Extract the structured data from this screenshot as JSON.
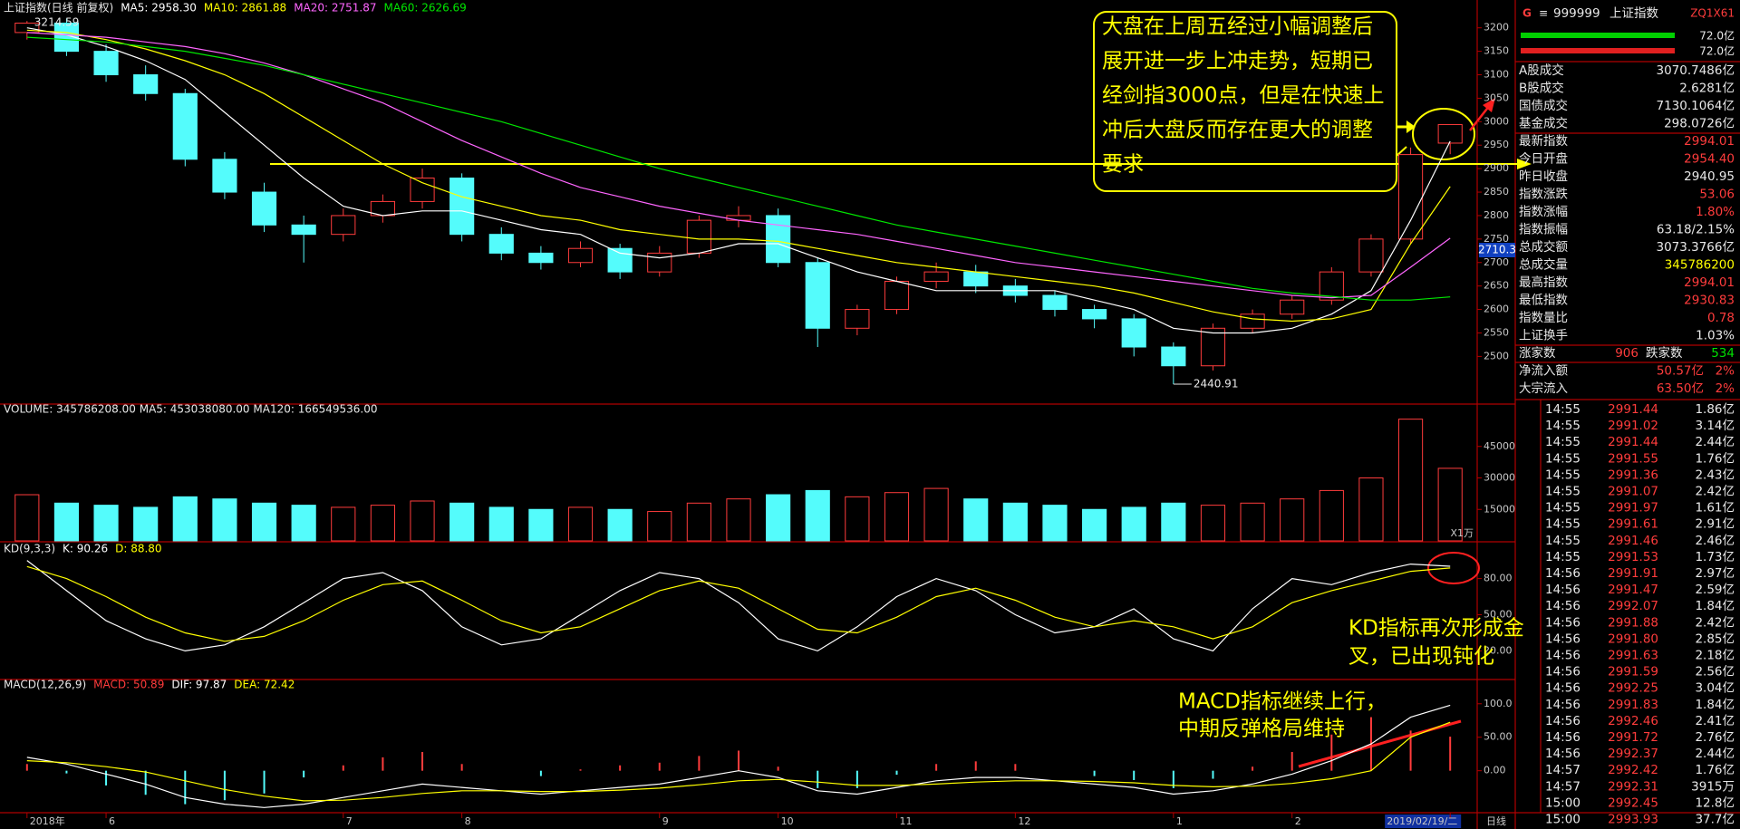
{
  "chart_data": [
    {
      "type": "candlestick",
      "title": "上证指数(日线 前复权)",
      "categories": [
        "2018年",
        null,
        "6",
        null,
        null,
        null,
        null,
        null,
        "7",
        null,
        null,
        "8",
        null,
        null,
        null,
        null,
        "9",
        null,
        null,
        "10",
        null,
        null,
        "11",
        null,
        null,
        "12",
        null,
        null,
        null,
        "1",
        null,
        null,
        "2",
        null,
        null,
        null,
        "2019/02/19/二"
      ],
      "open": [
        3190,
        3210,
        3150,
        3100,
        3060,
        2920,
        2850,
        2780,
        2760,
        2800,
        2830,
        2880,
        2760,
        2720,
        2700,
        2730,
        2680,
        2720,
        2790,
        2800,
        2700,
        2560,
        2600,
        2660,
        2680,
        2650,
        2630,
        2600,
        2580,
        2520,
        2480,
        2560,
        2590,
        2620,
        2680,
        2750,
        2954.4
      ],
      "high": [
        3214.59,
        3220,
        3165,
        3120,
        3070,
        2935,
        2870,
        2800,
        2815,
        2845,
        2900,
        2890,
        2775,
        2735,
        2745,
        2740,
        2735,
        2800,
        2820,
        2815,
        2710,
        2610,
        2670,
        2700,
        2695,
        2665,
        2640,
        2610,
        2590,
        2530,
        2570,
        2600,
        2630,
        2690,
        2760,
        2945,
        2994.01
      ],
      "low": [
        3175,
        3140,
        3085,
        3045,
        2905,
        2835,
        2765,
        2700,
        2745,
        2785,
        2815,
        2745,
        2705,
        2685,
        2690,
        2665,
        2670,
        2710,
        2775,
        2690,
        2520,
        2545,
        2590,
        2645,
        2635,
        2615,
        2585,
        2560,
        2500,
        2440.91,
        2470,
        2550,
        2580,
        2610,
        2670,
        2740,
        2930.83
      ],
      "close": [
        3210,
        3150,
        3100,
        3060,
        2920,
        2850,
        2780,
        2760,
        2800,
        2830,
        2880,
        2760,
        2720,
        2700,
        2730,
        2680,
        2720,
        2790,
        2800,
        2700,
        2560,
        2600,
        2660,
        2680,
        2650,
        2630,
        2600,
        2580,
        2520,
        2480,
        2560,
        2590,
        2620,
        2680,
        2750,
        2930,
        2994.01
      ],
      "up_color": "#ff3c3c",
      "down_color": "#54fcfc",
      "series": [
        {
          "name": "MA5",
          "legend": "MA5: 2958.30",
          "color": "#ffffff",
          "values": [
            3200,
            3185,
            3160,
            3130,
            3090,
            3020,
            2950,
            2880,
            2820,
            2800,
            2810,
            2810,
            2790,
            2770,
            2760,
            2720,
            2710,
            2720,
            2740,
            2740,
            2710,
            2680,
            2660,
            2640,
            2640,
            2640,
            2640,
            2620,
            2600,
            2560,
            2550,
            2550,
            2560,
            2590,
            2640,
            2790,
            2958.3
          ]
        },
        {
          "name": "MA10",
          "legend": "MA10: 2861.88",
          "color": "#ffff00",
          "values": [
            3195,
            3190,
            3175,
            3155,
            3130,
            3100,
            3060,
            3010,
            2960,
            2910,
            2870,
            2840,
            2820,
            2800,
            2790,
            2770,
            2760,
            2750,
            2750,
            2745,
            2730,
            2715,
            2700,
            2690,
            2680,
            2670,
            2660,
            2650,
            2635,
            2615,
            2595,
            2580,
            2575,
            2580,
            2600,
            2740,
            2861.88
          ]
        },
        {
          "name": "MA20",
          "legend": "MA20: 2751.87",
          "color": "#ff66ff",
          "values": [
            3190,
            3185,
            3180,
            3170,
            3160,
            3145,
            3125,
            3100,
            3070,
            3040,
            3000,
            2960,
            2925,
            2890,
            2860,
            2840,
            2820,
            2805,
            2790,
            2780,
            2770,
            2760,
            2745,
            2730,
            2715,
            2700,
            2690,
            2680,
            2670,
            2660,
            2650,
            2640,
            2630,
            2625,
            2630,
            2690,
            2751.87
          ]
        },
        {
          "name": "MA60",
          "legend": "MA60: 2626.69",
          "color": "#00e600",
          "values": [
            3180,
            3175,
            3170,
            3160,
            3150,
            3135,
            3120,
            3100,
            3080,
            3060,
            3040,
            3020,
            3000,
            2975,
            2950,
            2925,
            2900,
            2880,
            2860,
            2840,
            2820,
            2800,
            2780,
            2765,
            2750,
            2735,
            2720,
            2705,
            2690,
            2675,
            2660,
            2645,
            2635,
            2628,
            2620,
            2620,
            2626.69
          ]
        }
      ],
      "ylim": [
        2410,
        3240
      ],
      "yticks": [
        2500,
        2550,
        2600,
        2650,
        2700,
        2750,
        2800,
        2850,
        2900,
        2950,
        3000,
        3050,
        3100,
        3150,
        3200
      ],
      "cursor_price": "2710.3"
    },
    {
      "type": "bar",
      "title": "VOLUME: 345786208.00  MA5: 453038080.00  MA120: 166549536.00",
      "unit": "X1万",
      "values": [
        22000,
        18000,
        17000,
        16000,
        21000,
        20000,
        18000,
        17000,
        16000,
        17000,
        19000,
        18000,
        16000,
        15000,
        16000,
        15000,
        14000,
        18000,
        20000,
        22000,
        24000,
        21000,
        23000,
        25000,
        20000,
        18000,
        17000,
        15000,
        16000,
        18000,
        17000,
        18000,
        20000,
        24000,
        30000,
        58000,
        34578.62
      ],
      "ylim": [
        0,
        60000
      ],
      "yticks": [
        15000,
        30000,
        45000
      ]
    },
    {
      "type": "line",
      "title": "KD(9,3,3)",
      "series": [
        {
          "name": "K",
          "legend": "K: 90.26",
          "color": "#ffffff",
          "values": [
            95,
            70,
            45,
            30,
            20,
            25,
            40,
            60,
            80,
            85,
            70,
            40,
            25,
            30,
            50,
            70,
            85,
            80,
            60,
            30,
            20,
            40,
            65,
            80,
            70,
            50,
            35,
            40,
            55,
            30,
            20,
            55,
            80,
            75,
            85,
            92,
            90.26
          ]
        },
        {
          "name": "D",
          "legend": "D: 88.80",
          "color": "#ffff00",
          "values": [
            90,
            80,
            65,
            48,
            35,
            28,
            32,
            45,
            62,
            75,
            78,
            62,
            45,
            35,
            40,
            55,
            70,
            78,
            72,
            55,
            38,
            35,
            48,
            65,
            72,
            62,
            48,
            40,
            45,
            40,
            30,
            40,
            60,
            70,
            78,
            86,
            88.8
          ]
        }
      ],
      "ylim": [
        0,
        100
      ],
      "yticks": [
        {
          "value": 20,
          "label": "20.00"
        },
        {
          "value": 50,
          "label": "50.00"
        },
        {
          "value": 80,
          "label": "80.00"
        }
      ]
    },
    {
      "type": "line",
      "title": "MACD(12,26,9)",
      "series": [
        {
          "name": "MACD",
          "legend": "MACD: 50.89",
          "style": "histogram",
          "color": "#ff3c3c",
          "negative_color": "#54fcfc",
          "values": [
            10,
            -4,
            -22,
            -36,
            -50,
            -44,
            -34,
            -10,
            8,
            20,
            28,
            10,
            0,
            -8,
            2,
            8,
            12,
            22,
            30,
            6,
            -26,
            -26,
            -6,
            10,
            14,
            10,
            0,
            -8,
            -14,
            -26,
            -12,
            6,
            28,
            54,
            80,
            60,
            50.89
          ]
        },
        {
          "name": "DIF",
          "legend": "DIF: 97.87",
          "color": "#ffffff",
          "values": [
            20,
            10,
            -5,
            -20,
            -40,
            -50,
            -55,
            -50,
            -40,
            -30,
            -20,
            -25,
            -30,
            -35,
            -30,
            -25,
            -20,
            -10,
            0,
            -10,
            -30,
            -35,
            -25,
            -15,
            -10,
            -10,
            -15,
            -20,
            -25,
            -35,
            -30,
            -20,
            -5,
            15,
            40,
            80,
            97.87
          ]
        },
        {
          "name": "DEA",
          "legend": "DEA: 72.42",
          "color": "#ffff00",
          "values": [
            15,
            12,
            6,
            -2,
            -15,
            -28,
            -38,
            -45,
            -44,
            -40,
            -34,
            -30,
            -30,
            -31,
            -31,
            -29,
            -26,
            -21,
            -15,
            -13,
            -17,
            -22,
            -22,
            -20,
            -17,
            -15,
            -15,
            -16,
            -18,
            -22,
            -24,
            -23,
            -19,
            -12,
            0,
            50,
            72.42
          ]
        }
      ],
      "ylim": [
        -60,
        120
      ],
      "yticks": [
        {
          "value": 0,
          "label": "0.00"
        },
        {
          "value": 50,
          "label": "50.00"
        },
        {
          "value": 100,
          "label": "100.0"
        }
      ]
    }
  ],
  "period": "日线",
  "quote_header": {
    "flag": "G",
    "menu": "≡",
    "code": "999999",
    "name": "上证指数",
    "tag": "ZQ1X61",
    "bar1": "72.0亿",
    "bar2": "72.0亿"
  },
  "quote_rows": [
    {
      "label": "A股成交",
      "value": "3070.7486亿",
      "color": "#e8e8e8"
    },
    {
      "label": "B股成交",
      "value": "2.6281亿",
      "color": "#e8e8e8"
    },
    {
      "label": "国债成交",
      "value": "7130.1064亿",
      "color": "#e8e8e8"
    },
    {
      "label": "基金成交",
      "value": "298.0726亿",
      "color": "#e8e8e8"
    },
    {
      "label": "最新指数",
      "value": "2994.01",
      "color": "#ff3c3c"
    },
    {
      "label": "今日开盘",
      "value": "2954.40",
      "color": "#ff3c3c"
    },
    {
      "label": "昨日收盘",
      "value": "2940.95",
      "color": "#e8e8e8"
    },
    {
      "label": "指数涨跌",
      "value": "53.06",
      "color": "#ff3c3c"
    },
    {
      "label": "指数涨幅",
      "value": "1.80%",
      "color": "#ff3c3c"
    },
    {
      "label": "指数振幅",
      "value": "63.18/2.15%",
      "color": "#e8e8e8"
    },
    {
      "label": "总成交额",
      "value": "3073.3766亿",
      "color": "#e8e8e8"
    },
    {
      "label": "总成交量",
      "value": "345786200",
      "color": "#ffff00"
    },
    {
      "label": "最高指数",
      "value": "2994.01",
      "color": "#ff3c3c"
    },
    {
      "label": "最低指数",
      "value": "2930.83",
      "color": "#ff3c3c"
    },
    {
      "label": "指数量比",
      "value": "0.78",
      "color": "#ff3c3c"
    },
    {
      "label": "上证换手",
      "value": "1.03%",
      "color": "#e8e8e8"
    }
  ],
  "breadth": {
    "up_label": "涨家数",
    "up": "906",
    "down_label": "跌家数",
    "down": "534"
  },
  "flows": [
    {
      "label": "净流入额",
      "value": "50.57亿",
      "pct": "2%"
    },
    {
      "label": "大宗流入",
      "value": "63.50亿",
      "pct": "2%"
    }
  ],
  "trades": [
    [
      "14:55",
      "2991.44",
      "1.86亿"
    ],
    [
      "14:55",
      "2991.02",
      "3.14亿"
    ],
    [
      "14:55",
      "2991.44",
      "2.44亿"
    ],
    [
      "14:55",
      "2991.55",
      "1.76亿"
    ],
    [
      "14:55",
      "2991.36",
      "2.43亿"
    ],
    [
      "14:55",
      "2991.07",
      "2.42亿"
    ],
    [
      "14:55",
      "2991.97",
      "1.61亿"
    ],
    [
      "14:55",
      "2991.61",
      "2.91亿"
    ],
    [
      "14:55",
      "2991.46",
      "2.46亿"
    ],
    [
      "14:55",
      "2991.53",
      "1.73亿"
    ],
    [
      "14:56",
      "2991.91",
      "2.97亿"
    ],
    [
      "14:56",
      "2991.47",
      "2.59亿"
    ],
    [
      "14:56",
      "2992.07",
      "1.84亿"
    ],
    [
      "14:56",
      "2991.88",
      "2.42亿"
    ],
    [
      "14:56",
      "2991.80",
      "2.85亿"
    ],
    [
      "14:56",
      "2991.63",
      "2.18亿"
    ],
    [
      "14:56",
      "2991.59",
      "2.56亿"
    ],
    [
      "14:56",
      "2992.25",
      "3.04亿"
    ],
    [
      "14:56",
      "2991.83",
      "1.84亿"
    ],
    [
      "14:56",
      "2992.46",
      "2.41亿"
    ],
    [
      "14:56",
      "2991.72",
      "2.76亿"
    ],
    [
      "14:56",
      "2992.37",
      "2.44亿"
    ],
    [
      "14:57",
      "2992.42",
      "1.76亿"
    ],
    [
      "14:57",
      "2992.31",
      "3915万"
    ],
    [
      "15:00",
      "2992.45",
      "12.8亿"
    ],
    [
      "15:00",
      "2993.93",
      "37.7亿"
    ]
  ],
  "annotations": [
    {
      "lines": [
        "大盘在上周五经过小幅调整后",
        "展开进一步上冲走势，短期已",
        "经剑指3000点，但是在快速上",
        "冲后大盘反而存在更大的调整",
        "要求"
      ]
    },
    {
      "lines": [
        "KD指标再次形成金",
        "叉，已出现钝化"
      ]
    },
    {
      "lines": [
        "MACD指标继续上行，",
        "中期反弹格局维持"
      ]
    }
  ]
}
